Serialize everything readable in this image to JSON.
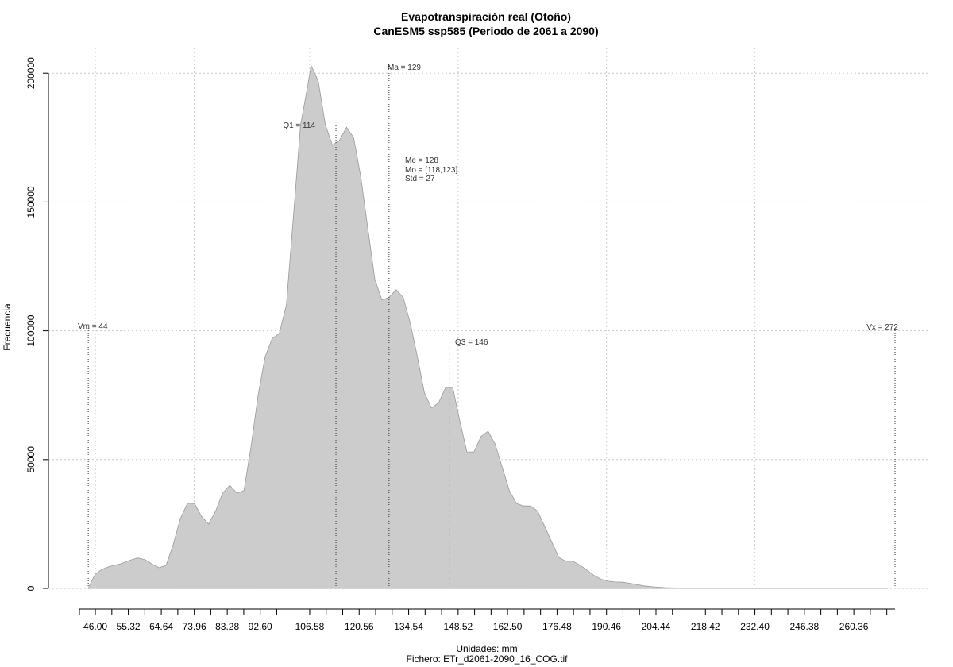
{
  "chart_data": {
    "type": "area",
    "title": "Evapotranspiración real (Otoño)",
    "subtitle": "CanESM5 ssp585 (Periodo de 2061 a 2090)",
    "xlabel": "Unidades: mm",
    "caption": "Fichero: ETr_d2061-2090_16_COG.tif",
    "ylabel": "Frecuencia",
    "xlim": [
      41.5,
      272
    ],
    "ylim": [
      0,
      205000
    ],
    "grid": true,
    "x_ticks": [
      41.5,
      46.0,
      50.66,
      55.32,
      59.98,
      64.64,
      69.3,
      73.96,
      78.62,
      83.28,
      87.94,
      92.6,
      97.26,
      106.58,
      111.24,
      115.9,
      120.56,
      125.22,
      129.88,
      134.54,
      139.2,
      143.86,
      148.52,
      153.18,
      157.84,
      162.5,
      167.16,
      171.82,
      176.48,
      181.14,
      185.8,
      190.46,
      195.12,
      199.78,
      204.44,
      209.1,
      213.76,
      218.42,
      223.08,
      227.74,
      232.4,
      237.06,
      241.72,
      246.38,
      251.04,
      255.7,
      260.36,
      265.02,
      269.68
    ],
    "x_tick_labels": [
      "46.00",
      "55.32",
      "64.64",
      "73.96",
      "83.28",
      "92.60",
      "106.58",
      "120.56",
      "134.54",
      "148.52",
      "162.50",
      "176.48",
      "190.46",
      "204.44",
      "218.42",
      "232.40",
      "246.38",
      "260.36"
    ],
    "y_ticks": [
      0,
      50000,
      100000,
      150000,
      200000
    ],
    "y_tick_labels": [
      "0",
      "50000",
      "100000",
      "150000",
      "200000"
    ],
    "series": [
      {
        "x": [
          44,
          45,
          46,
          48,
          50,
          53,
          56,
          58,
          60,
          62,
          64,
          66,
          68,
          70,
          72,
          74,
          76,
          78,
          80,
          82,
          84,
          86,
          88,
          90,
          92,
          94,
          96,
          98,
          100,
          102,
          104,
          106,
          107,
          109,
          111,
          113,
          115,
          117,
          119,
          121,
          123,
          125,
          127,
          129,
          131,
          133,
          135,
          137,
          139,
          141,
          143,
          145,
          147,
          149,
          151,
          153,
          155,
          157,
          159,
          161,
          163,
          165,
          167,
          169,
          171,
          173,
          175,
          177,
          179,
          181,
          183,
          185,
          187,
          189,
          191,
          193,
          195,
          197,
          199,
          201,
          204,
          207,
          210,
          213,
          216,
          220,
          225,
          230,
          240,
          250,
          260,
          270
        ],
        "y": [
          0,
          3000,
          5500,
          7500,
          8500,
          9500,
          11000,
          11800,
          11200,
          9500,
          8000,
          9000,
          17000,
          27000,
          33000,
          33000,
          28000,
          25000,
          30000,
          37000,
          40000,
          37000,
          38000,
          55000,
          75000,
          90000,
          97000,
          99000,
          110000,
          145000,
          180000,
          195000,
          203000,
          197000,
          180000,
          172000,
          174000,
          179000,
          175000,
          160000,
          140000,
          120000,
          112000,
          113000,
          116000,
          113000,
          103000,
          90000,
          76000,
          70000,
          72000,
          78000,
          78000,
          65000,
          53000,
          53000,
          59000,
          61000,
          56000,
          47000,
          38000,
          33000,
          32000,
          32000,
          30000,
          24000,
          18000,
          12000,
          10500,
          10500,
          9000,
          7000,
          5000,
          3500,
          2800,
          2500,
          2400,
          2000,
          1500,
          1000,
          600,
          300,
          200,
          100,
          80,
          50,
          30,
          20,
          20,
          20,
          20,
          10
        ]
      }
    ],
    "annotations": {
      "vm": {
        "label": "Vm = 44",
        "x": 44,
        "y": 101000
      },
      "q1": {
        "label": "Q1 = 114",
        "x": 114,
        "y": 180000
      },
      "ma": {
        "label": "Ma = 129",
        "x": 129,
        "y": 203000
      },
      "me": {
        "label": "Me = 128"
      },
      "mo": {
        "label": "Mo = [118,123]"
      },
      "std": {
        "label": "Std = 27"
      },
      "q3": {
        "label": "Q3 = 146",
        "x": 146,
        "y": 96000
      },
      "vx": {
        "label": "Vx = 272",
        "x": 272,
        "y": 101000
      }
    },
    "colors": {
      "fill": "#cccccc",
      "outline": "#999999"
    }
  }
}
